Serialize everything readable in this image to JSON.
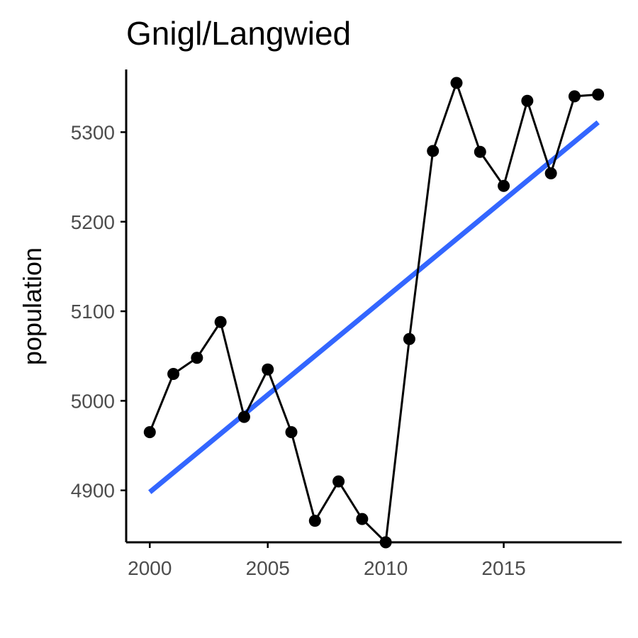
{
  "chart_data": {
    "type": "line",
    "title": "Gnigl/Langwied",
    "xlabel": "",
    "ylabel": "population",
    "xlim": [
      1999.0,
      2020.0
    ],
    "ylim": [
      4842,
      5370
    ],
    "xticks": [
      2000,
      2005,
      2010,
      2015
    ],
    "yticks": [
      4900,
      5000,
      5100,
      5200,
      5300
    ],
    "grid": false,
    "series": [
      {
        "x": [
          2000,
          2001,
          2002,
          2003,
          2004,
          2005,
          2006,
          2007,
          2008,
          2009,
          2010,
          2011,
          2012,
          2013,
          2014,
          2015,
          2016,
          2017,
          2018,
          2019
        ],
        "values": [
          4965,
          5030,
          5048,
          5088,
          4982,
          5035,
          4965,
          4866,
          4910,
          4868,
          4842,
          5069,
          5279,
          5355,
          5278,
          5240,
          5335,
          5254,
          5340,
          5342
        ],
        "color": "#000000"
      }
    ],
    "trend": {
      "x": [
        2000,
        2019
      ],
      "values": [
        4898,
        5311
      ],
      "color": "#3366ff"
    }
  }
}
